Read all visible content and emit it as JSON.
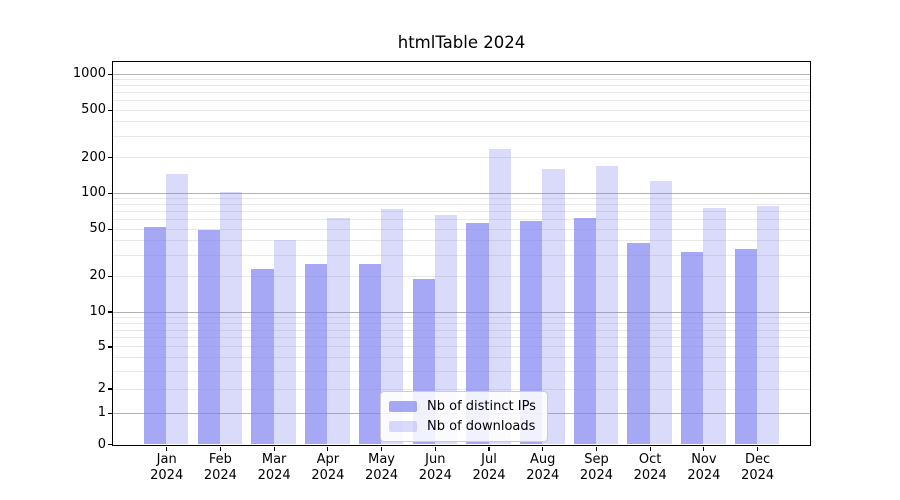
{
  "title": "htmlTable 2024",
  "legend": {
    "items": [
      {
        "label": "Nb of distinct IPs",
        "color": "rgba(123,126,240,0.67)"
      },
      {
        "label": "Nb of downloads",
        "color": "rgba(123,126,240,0.28)"
      }
    ]
  },
  "chart_data": {
    "type": "bar",
    "title": "htmlTable 2024",
    "categories": [
      "Jan 2024",
      "Feb 2024",
      "Mar 2024",
      "Apr 2024",
      "May 2024",
      "Jun 2024",
      "Jul 2024",
      "Aug 2024",
      "Sep 2024",
      "Oct 2024",
      "Nov 2024",
      "Dec 2024"
    ],
    "series": [
      {
        "name": "Nb of distinct IPs",
        "values": [
          52,
          49,
          23,
          25,
          25,
          19,
          56,
          58,
          62,
          38,
          32,
          34
        ]
      },
      {
        "name": "Nb of downloads",
        "values": [
          144,
          102,
          40,
          62,
          73,
          65,
          235,
          160,
          168,
          125,
          74,
          78
        ]
      }
    ],
    "xlabel": "",
    "ylabel": "",
    "yscale": "asinh",
    "ylim": [
      0,
      1260
    ],
    "yticks": [
      1000,
      500,
      200,
      100,
      50,
      20,
      10,
      5,
      2,
      1,
      0
    ],
    "major_gridlines": [
      1,
      10,
      100,
      1000
    ],
    "minor_gridlines": [
      2,
      3,
      4,
      5,
      6,
      7,
      8,
      9,
      20,
      30,
      40,
      50,
      60,
      70,
      80,
      90,
      200,
      300,
      400,
      500,
      600,
      700,
      800,
      900
    ],
    "grid": true,
    "legend_position": "lower center",
    "colors": {
      "bar_distinct_ips": "rgba(123,126,240,0.67)",
      "bar_downloads": "rgba(123,126,240,0.28)",
      "grid_major": "#b2b2b2",
      "grid_minor": "#e8e8e8",
      "axis": "#000000",
      "text": "#000000"
    }
  }
}
